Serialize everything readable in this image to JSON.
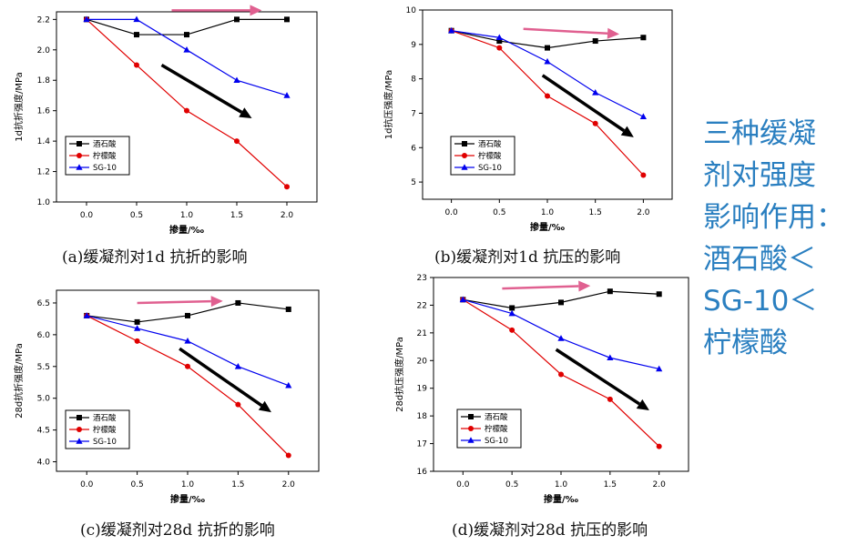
{
  "summary": {
    "lines": [
      "三种缓凝",
      "剂对强度",
      "影响作用：",
      "酒石酸＜",
      "SG-10＜",
      "柠檬酸"
    ]
  },
  "colors": {
    "series": [
      "#000000",
      "#e00000",
      "#0000ee"
    ],
    "pink_arrow": "#e06090",
    "black_arrow": "#000000"
  },
  "chart_data": [
    {
      "type": "line",
      "caption": "(a)缓凝剂对1d 抗折的影响",
      "xlabel": "掺量/‰",
      "ylabel": "1d抗折强度/MPa",
      "xlim": [
        -0.3,
        2.3
      ],
      "ylim": [
        1.0,
        2.25
      ],
      "xticks": [
        0.0,
        0.5,
        1.0,
        1.5,
        2.0
      ],
      "xtick_labels": [
        "0.0",
        "0.5",
        "1.0",
        "1.5",
        "2.0"
      ],
      "yticks": [
        1.0,
        1.2,
        1.4,
        1.6,
        1.8,
        2.0,
        2.2
      ],
      "ytick_labels": [
        "1.0",
        "1.2",
        "1.4",
        "1.6",
        "1.8",
        "2.0",
        "2.2"
      ],
      "x": [
        0.0,
        0.5,
        1.0,
        1.5,
        2.0
      ],
      "series": [
        {
          "name": "酒石酸",
          "marker": "square",
          "values": [
            2.2,
            2.1,
            2.1,
            2.2,
            2.2
          ]
        },
        {
          "name": "柠檬酸",
          "marker": "circle",
          "values": [
            2.2,
            1.9,
            1.6,
            1.4,
            1.1
          ]
        },
        {
          "name": "SG-10",
          "marker": "triangle",
          "values": [
            2.2,
            2.2,
            2.0,
            1.8,
            1.7
          ]
        }
      ],
      "legend": "bottom-left",
      "annotations": [
        {
          "type": "arrow",
          "color": "pink",
          "from": [
            0.85,
            2.26
          ],
          "to": [
            1.75,
            2.26
          ]
        },
        {
          "type": "arrow",
          "color": "black",
          "from": [
            0.75,
            1.9
          ],
          "to": [
            1.65,
            1.55
          ]
        }
      ]
    },
    {
      "type": "line",
      "caption": "(b)缓凝剂对1d 抗压的影响",
      "xlabel": "掺量/‰",
      "ylabel": "1d抗压强度/MPa",
      "xlim": [
        -0.3,
        2.3
      ],
      "ylim": [
        4.5,
        10
      ],
      "xticks": [
        0.0,
        0.5,
        1.0,
        1.5,
        2.0
      ],
      "xtick_labels": [
        "0.0",
        "0.5",
        "1.0",
        "1.5",
        "2.0"
      ],
      "yticks": [
        5,
        6,
        7,
        8,
        9,
        10
      ],
      "ytick_labels": [
        "5",
        "6",
        "7",
        "8",
        "9",
        "10"
      ],
      "x": [
        0.0,
        0.5,
        1.0,
        1.5,
        2.0
      ],
      "series": [
        {
          "name": "酒石酸",
          "marker": "square",
          "values": [
            9.4,
            9.1,
            8.9,
            9.1,
            9.2
          ]
        },
        {
          "name": "柠檬酸",
          "marker": "circle",
          "values": [
            9.4,
            8.9,
            7.5,
            6.7,
            5.2
          ]
        },
        {
          "name": "SG-10",
          "marker": "triangle",
          "values": [
            9.4,
            9.2,
            8.5,
            7.6,
            6.9
          ]
        }
      ],
      "legend": "bottom-left",
      "annotations": [
        {
          "type": "arrow",
          "color": "pink",
          "from": [
            0.75,
            9.45
          ],
          "to": [
            1.75,
            9.3
          ]
        },
        {
          "type": "arrow",
          "color": "black",
          "from": [
            0.95,
            8.1
          ],
          "to": [
            1.9,
            6.3
          ]
        }
      ]
    },
    {
      "type": "line",
      "caption": "(c)缓凝剂对28d 抗折的影响",
      "xlabel": "掺量/‰",
      "ylabel": "28d抗折强度/MPa",
      "xlim": [
        -0.3,
        2.3
      ],
      "ylim": [
        3.85,
        6.7
      ],
      "xticks": [
        0.0,
        0.5,
        1.0,
        1.5,
        2.0
      ],
      "xtick_labels": [
        "0.0",
        "0.5",
        "1.0",
        "1.5",
        "2.0"
      ],
      "yticks": [
        4.0,
        4.5,
        5.0,
        5.5,
        6.0,
        6.5
      ],
      "ytick_labels": [
        "4.0",
        "4.5",
        "5.0",
        "5.5",
        "6.0",
        "6.5"
      ],
      "x": [
        0.0,
        0.5,
        1.0,
        1.5,
        2.0
      ],
      "series": [
        {
          "name": "酒石酸",
          "marker": "square",
          "values": [
            6.3,
            6.2,
            6.3,
            6.5,
            6.4
          ]
        },
        {
          "name": "柠檬酸",
          "marker": "circle",
          "values": [
            6.3,
            5.9,
            5.5,
            4.9,
            4.1
          ]
        },
        {
          "name": "SG-10",
          "marker": "triangle",
          "values": [
            6.3,
            6.1,
            5.9,
            5.5,
            5.2
          ]
        }
      ],
      "legend": "bottom-left",
      "annotations": [
        {
          "type": "arrow",
          "color": "pink",
          "from": [
            0.5,
            6.5
          ],
          "to": [
            1.35,
            6.53
          ]
        },
        {
          "type": "arrow",
          "color": "black",
          "from": [
            0.92,
            5.78
          ],
          "to": [
            1.83,
            4.78
          ]
        }
      ]
    },
    {
      "type": "line",
      "caption": "(d)缓凝剂对28d 抗压的影响",
      "xlabel": "掺量/‰",
      "ylabel": "28d抗压强度/MPa",
      "xlim": [
        -0.3,
        2.3
      ],
      "ylim": [
        16,
        23
      ],
      "xticks": [
        0.0,
        0.5,
        1.0,
        1.5,
        2.0
      ],
      "xtick_labels": [
        "0.0",
        "0.5",
        "1.0",
        "1.5",
        "2.0"
      ],
      "yticks": [
        16,
        17,
        18,
        19,
        20,
        21,
        22,
        23
      ],
      "ytick_labels": [
        "16",
        "17",
        "18",
        "19",
        "20",
        "21",
        "22",
        "23"
      ],
      "x": [
        0.0,
        0.5,
        1.0,
        1.5,
        2.0
      ],
      "series": [
        {
          "name": "酒石酸",
          "marker": "square",
          "values": [
            22.2,
            21.9,
            22.1,
            22.5,
            22.4
          ]
        },
        {
          "name": "柠檬酸",
          "marker": "circle",
          "values": [
            22.2,
            21.1,
            19.5,
            18.6,
            16.9
          ]
        },
        {
          "name": "SG-10",
          "marker": "triangle",
          "values": [
            22.2,
            21.7,
            20.8,
            20.1,
            19.7
          ]
        }
      ],
      "legend": "bottom-left",
      "annotations": [
        {
          "type": "arrow",
          "color": "pink",
          "from": [
            0.4,
            22.6
          ],
          "to": [
            1.3,
            22.7
          ]
        },
        {
          "type": "arrow",
          "color": "black",
          "from": [
            0.95,
            20.4
          ],
          "to": [
            1.9,
            18.2
          ]
        }
      ]
    }
  ]
}
